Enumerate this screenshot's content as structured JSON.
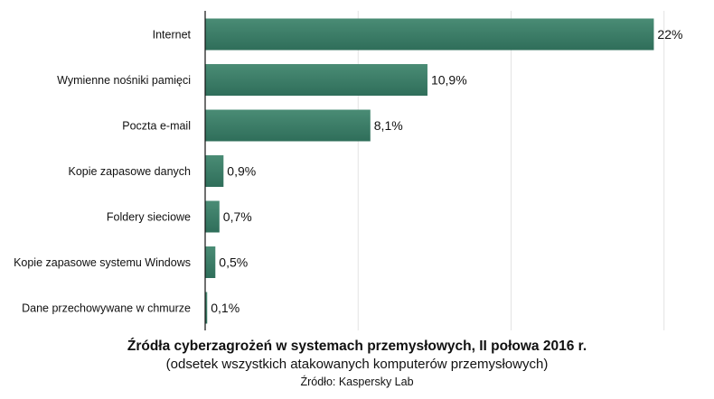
{
  "chart_data": {
    "type": "bar",
    "orientation": "horizontal",
    "categories": [
      "Internet",
      "Wymienne nośniki pamięci",
      "Poczta e-mail",
      "Kopie zapasowe danych",
      "Foldery sieciowe",
      "Kopie zapasowe systemu Windows",
      "Dane przechowywane w chmurze"
    ],
    "values": [
      22,
      10.9,
      8.1,
      0.9,
      0.7,
      0.5,
      0.1
    ],
    "value_labels": [
      "22%",
      "10,9%",
      "8,1%",
      "0,9%",
      "0,7%",
      "0,5%",
      "0,1%"
    ],
    "xlim": [
      0,
      23
    ],
    "grid": true,
    "legend": "none",
    "bar_color": "#2f6e5a",
    "bar_color_light": "#4a8c75",
    "title": "Źródła cyberzagrożeń w systemach przemysłowych, II połowa 2016 r.",
    "subtitle": "(odsetek wszystkich atakowanych komputerów przemysłowych)",
    "source": "Źródło: Kaspersky Lab"
  }
}
